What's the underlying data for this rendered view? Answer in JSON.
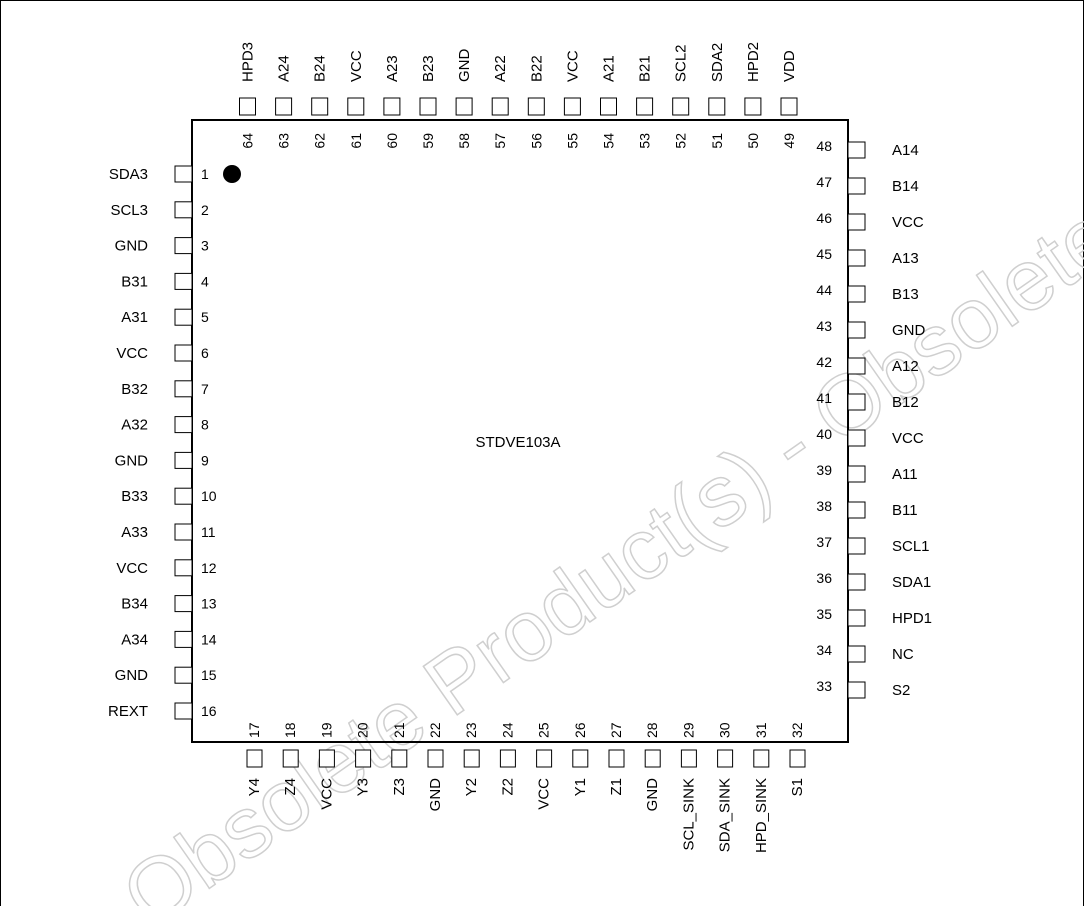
{
  "chip": {
    "label": "STDVE103A"
  },
  "watermark": {
    "text": "Obsolete Product(s) - Obsolete Product(s)"
  },
  "pins": {
    "left": [
      {
        "num": "1",
        "name": "SDA3"
      },
      {
        "num": "2",
        "name": "SCL3"
      },
      {
        "num": "3",
        "name": "GND"
      },
      {
        "num": "4",
        "name": "B31"
      },
      {
        "num": "5",
        "name": "A31"
      },
      {
        "num": "6",
        "name": "VCC"
      },
      {
        "num": "7",
        "name": "B32"
      },
      {
        "num": "8",
        "name": "A32"
      },
      {
        "num": "9",
        "name": "GND"
      },
      {
        "num": "10",
        "name": "B33"
      },
      {
        "num": "11",
        "name": "A33"
      },
      {
        "num": "12",
        "name": "VCC"
      },
      {
        "num": "13",
        "name": "B34"
      },
      {
        "num": "14",
        "name": "A34"
      },
      {
        "num": "15",
        "name": "GND"
      },
      {
        "num": "16",
        "name": "REXT"
      }
    ],
    "bottom": [
      {
        "num": "17",
        "name": "Y4"
      },
      {
        "num": "18",
        "name": "Z4"
      },
      {
        "num": "19",
        "name": "VCC"
      },
      {
        "num": "20",
        "name": "Y3"
      },
      {
        "num": "21",
        "name": "Z3"
      },
      {
        "num": "22",
        "name": "GND"
      },
      {
        "num": "23",
        "name": "Y2"
      },
      {
        "num": "24",
        "name": "Z2"
      },
      {
        "num": "25",
        "name": "VCC"
      },
      {
        "num": "26",
        "name": "Y1"
      },
      {
        "num": "27",
        "name": "Z1"
      },
      {
        "num": "28",
        "name": "GND"
      },
      {
        "num": "29",
        "name": "SCL_SINK"
      },
      {
        "num": "30",
        "name": "SDA_SINK"
      },
      {
        "num": "31",
        "name": "HPD_SINK"
      },
      {
        "num": "32",
        "name": "S1"
      }
    ],
    "right": [
      {
        "num": "33",
        "name": "S2"
      },
      {
        "num": "34",
        "name": "NC"
      },
      {
        "num": "35",
        "name": "HPD1"
      },
      {
        "num": "36",
        "name": "SDA1"
      },
      {
        "num": "37",
        "name": "SCL1"
      },
      {
        "num": "38",
        "name": "B11"
      },
      {
        "num": "39",
        "name": "A11"
      },
      {
        "num": "40",
        "name": "VCC"
      },
      {
        "num": "41",
        "name": "B12"
      },
      {
        "num": "42",
        "name": "A12"
      },
      {
        "num": "43",
        "name": "GND"
      },
      {
        "num": "44",
        "name": "B13"
      },
      {
        "num": "45",
        "name": "A13"
      },
      {
        "num": "46",
        "name": "VCC"
      },
      {
        "num": "47",
        "name": "B14"
      },
      {
        "num": "48",
        "name": "A14"
      }
    ],
    "top": [
      {
        "num": "49",
        "name": "VDD"
      },
      {
        "num": "50",
        "name": "HPD2"
      },
      {
        "num": "51",
        "name": "SDA2"
      },
      {
        "num": "52",
        "name": "SCL2"
      },
      {
        "num": "53",
        "name": "B21"
      },
      {
        "num": "54",
        "name": "A21"
      },
      {
        "num": "55",
        "name": "VCC"
      },
      {
        "num": "56",
        "name": "B22"
      },
      {
        "num": "57",
        "name": "A22"
      },
      {
        "num": "58",
        "name": "GND"
      },
      {
        "num": "59",
        "name": "B23"
      },
      {
        "num": "60",
        "name": "A23"
      },
      {
        "num": "61",
        "name": "VCC"
      },
      {
        "num": "62",
        "name": "B24"
      },
      {
        "num": "63",
        "name": "A24"
      },
      {
        "num": "64",
        "name": "HPD3"
      }
    ]
  }
}
